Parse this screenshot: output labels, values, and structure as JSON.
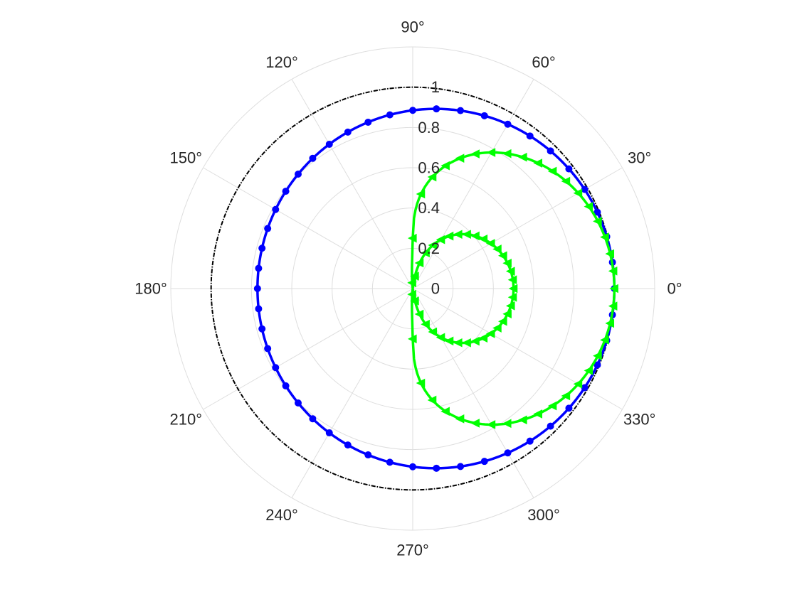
{
  "chart_data": {
    "type": "polar",
    "angle_unit": "degrees",
    "angle_ticks": [
      0,
      30,
      60,
      90,
      120,
      150,
      180,
      210,
      240,
      270,
      300,
      330
    ],
    "angle_tick_labels": [
      "0°",
      "30°",
      "60°",
      "90°",
      "120°",
      "150°",
      "180°",
      "210°",
      "240°",
      "270°",
      "300°",
      "330°"
    ],
    "r_ticks": [
      0,
      0.2,
      0.4,
      0.6,
      0.8,
      1
    ],
    "r_tick_labels": [
      "0",
      "0.2",
      "0.4",
      "0.6",
      "0.8",
      "1"
    ],
    "rlim": [
      0,
      1.2
    ],
    "r_label_angle": 90,
    "grid": true,
    "series": [
      {
        "color": "#000000",
        "line_style": "dash-dot",
        "marker": "none",
        "sample_step_deg": 5,
        "model": {
          "kind": "circle",
          "r": 1.0
        }
      },
      {
        "color": "#0000ff",
        "line_style": "solid",
        "marker": "circle",
        "sample_step_deg": 7.5,
        "model": {
          "kind": "limacon",
          "a": 0.885,
          "b": 0.115
        }
      },
      {
        "color": "#00ff00",
        "line_style": "solid",
        "marker": "triangle-left",
        "sample_step_deg": 5,
        "model": {
          "kind": "cos-power",
          "base": 0.25,
          "amp": 0.75,
          "power": 0.5
        }
      }
    ]
  }
}
